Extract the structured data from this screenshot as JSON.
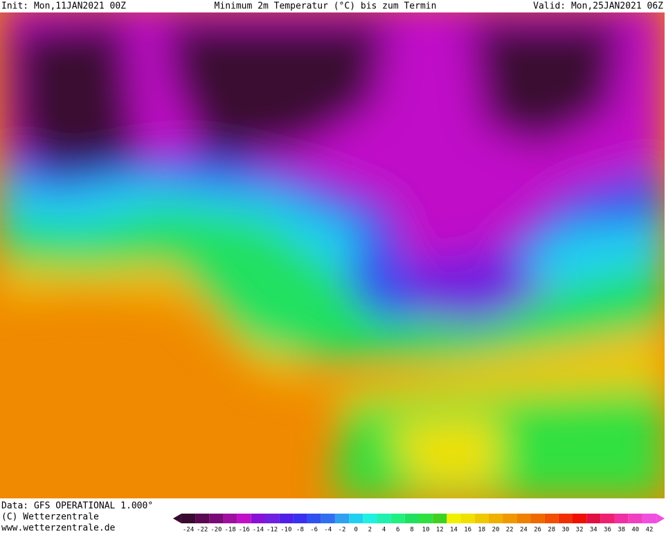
{
  "header": {
    "init": "Init: Mon,11JAN2021 00Z",
    "title": "Minimum 2m Temperatur (°C) bis zum Termin",
    "valid": "Valid: Mon,25JAN2021 06Z"
  },
  "footer": {
    "lines": [
      "Data: GFS OPERATIONAL 1.000°",
      "(C) Wetterzentrale",
      "www.wetterzentrale.de"
    ]
  },
  "scale": {
    "values": [
      -24,
      -22,
      -20,
      -18,
      -16,
      -14,
      -12,
      -10,
      -8,
      -6,
      -4,
      -2,
      0,
      2,
      4,
      6,
      8,
      10,
      12,
      14,
      16,
      18,
      20,
      22,
      24,
      26,
      28,
      30,
      32,
      34,
      36,
      38,
      40,
      42
    ],
    "colors": [
      "#3a0a30",
      "#5a0a50",
      "#7a0a78",
      "#a010a0",
      "#c010c8",
      "#8a10d8",
      "#7020e0",
      "#5020e8",
      "#3a30f0",
      "#3050f0",
      "#3070f0",
      "#30a0f0",
      "#20d0f0",
      "#20f0e0",
      "#20f0b0",
      "#20f080",
      "#20e060",
      "#30e040",
      "#40d020",
      "#f0f000",
      "#f0e000",
      "#f0c800",
      "#f0b000",
      "#f09800",
      "#f08000",
      "#f06800",
      "#f05000",
      "#f03000",
      "#f01000",
      "#e01040",
      "#f02070",
      "#f030a0",
      "#f040c0",
      "#f050e0"
    ]
  }
}
